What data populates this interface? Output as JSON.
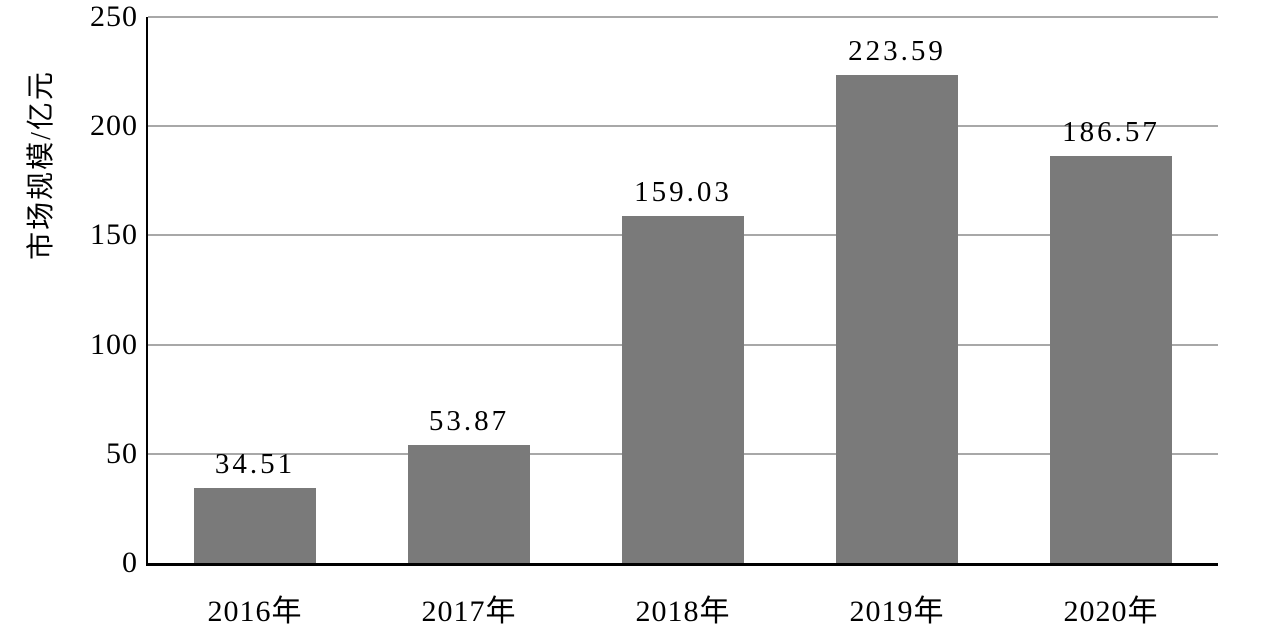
{
  "chart_data": {
    "type": "bar",
    "title": "",
    "xlabel": "",
    "ylabel": "市场规模/亿元",
    "categories": [
      "2016年",
      "2017年",
      "2018年",
      "2019年",
      "2020年"
    ],
    "values": [
      34.51,
      53.87,
      159.03,
      223.59,
      186.57
    ],
    "value_labels": [
      "34.51",
      "53.87",
      "159.03",
      "223.59",
      "186.57"
    ],
    "ylim": [
      0,
      250
    ],
    "yticks": [
      0,
      50,
      100,
      150,
      200,
      250
    ],
    "ytick_labels": [
      "0",
      "50",
      "100",
      "150",
      "200",
      "250"
    ],
    "grid": "horizontal gridlines on",
    "legend": "none",
    "colors": {
      "bar": "#7a7a7a",
      "gridline": "#a8a8a8",
      "axis": "#000000",
      "text": "#000000",
      "background": "#ffffff"
    }
  }
}
